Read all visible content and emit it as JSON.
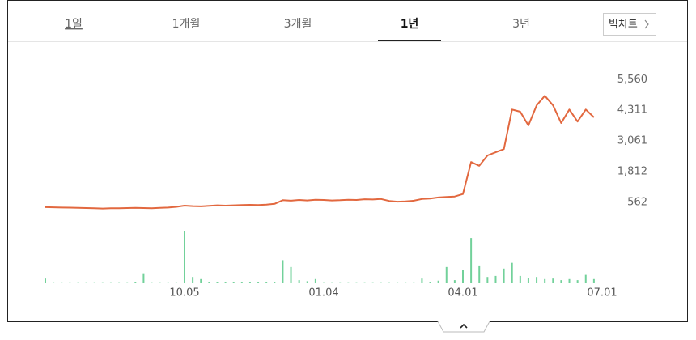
{
  "tabs": [
    "1일",
    "1개월",
    "3개월",
    "1년",
    "3년"
  ],
  "big_chart_button": "빅차트",
  "chart_data": {
    "type": "line",
    "categories": [
      null,
      null,
      null,
      null,
      null,
      null,
      null,
      null,
      null,
      null,
      null,
      null,
      null,
      null,
      null,
      null,
      null,
      "10.05",
      null,
      null,
      null,
      null,
      null,
      null,
      null,
      null,
      null,
      null,
      null,
      null,
      null,
      null,
      null,
      null,
      "01.04",
      null,
      null,
      null,
      null,
      null,
      null,
      null,
      null,
      null,
      null,
      null,
      null,
      null,
      null,
      null,
      null,
      "04.01",
      null,
      null,
      null,
      null,
      null,
      null,
      null,
      null,
      null,
      null,
      null,
      null,
      null,
      null,
      null,
      null,
      "07.01"
    ],
    "series": [
      {
        "color": "#e2683f",
        "values": [
          365,
          360,
          350,
          345,
          340,
          330,
          320,
          310,
          320,
          320,
          330,
          335,
          330,
          320,
          340,
          350,
          380,
          430,
          410,
          400,
          420,
          440,
          430,
          440,
          450,
          460,
          450,
          470,
          500,
          650,
          630,
          660,
          640,
          670,
          660,
          640,
          650,
          670,
          660,
          690,
          680,
          700,
          620,
          590,
          600,
          630,
          700,
          720,
          760,
          780,
          800,
          900,
          2200,
          2050,
          2470,
          2600,
          2730,
          4340,
          4250,
          3690,
          4510,
          4900,
          4510,
          3790,
          4340,
          3850,
          4340,
          4020,
          null
        ]
      },
      {
        "type": "bar",
        "axis": "y2",
        "color": "#72d19a",
        "values": [
          9,
          2,
          2,
          2,
          2,
          2,
          2,
          2,
          2,
          2,
          2,
          3,
          19,
          2,
          2,
          2,
          2,
          100,
          12,
          8,
          3,
          3,
          3,
          3,
          3,
          3,
          3,
          3,
          3,
          44,
          31,
          6,
          4,
          8,
          2,
          2,
          2,
          2,
          2,
          2,
          2,
          2,
          2,
          2,
          2,
          2,
          9,
          3,
          5,
          31,
          6,
          25,
          86,
          34,
          12,
          14,
          28,
          39,
          14,
          10,
          12,
          8,
          9,
          6,
          8,
          6,
          16,
          8,
          null
        ]
      }
    ],
    "ylim": [
      0,
      5800
    ],
    "yticks": [
      562,
      {
        "value": 1812,
        "label": "1,812"
      },
      {
        "value": 3061,
        "label": "3,061"
      },
      {
        "value": 4311,
        "label": "4,311"
      },
      {
        "value": 5560,
        "label": "5,560"
      }
    ],
    "y2lim": [
      0,
      100
    ]
  }
}
